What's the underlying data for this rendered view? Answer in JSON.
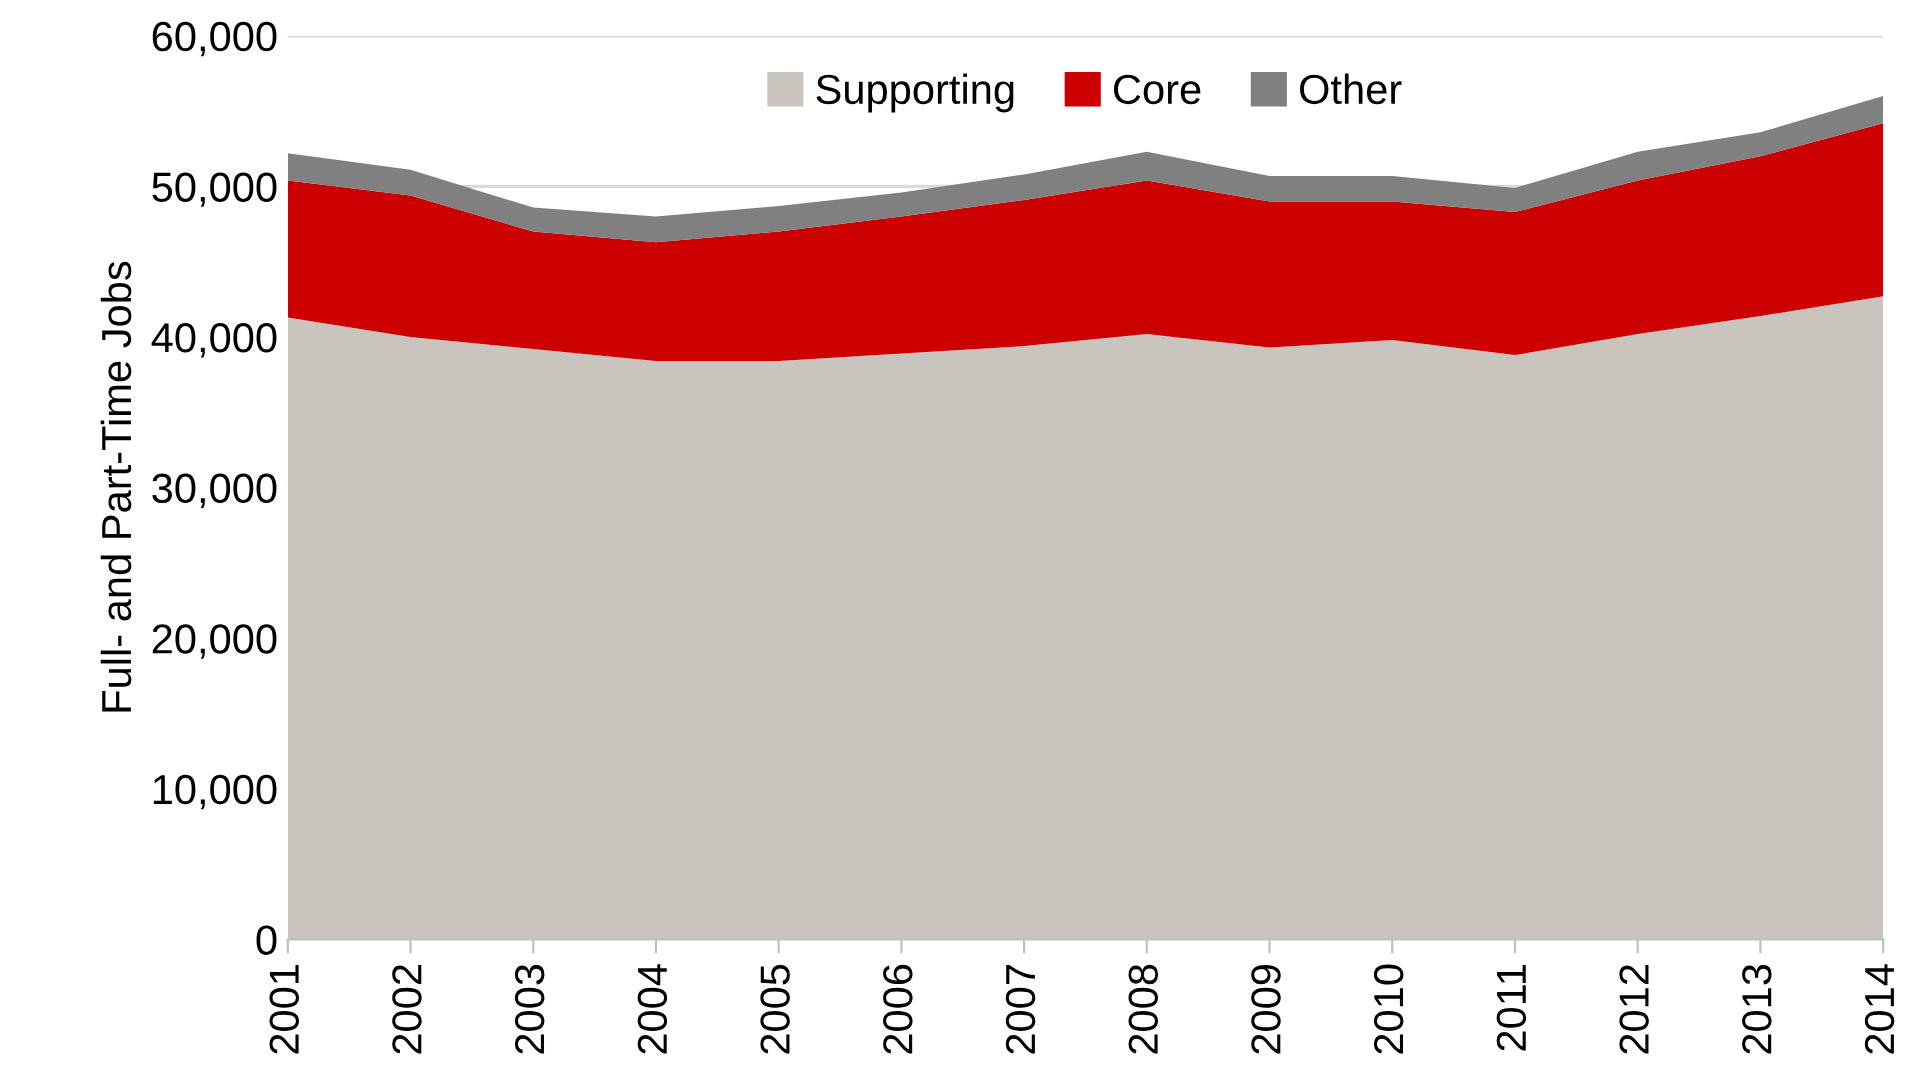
{
  "chart_data": {
    "type": "area",
    "stacked": true,
    "ylabel": "Full- and Part-Time Jobs",
    "categories": [
      "2001",
      "2002",
      "2003",
      "2004",
      "2005",
      "2006",
      "2007",
      "2008",
      "2009",
      "2010",
      "2011",
      "2012",
      "2013",
      "2014"
    ],
    "series": [
      {
        "name": "Supporting",
        "color": "#c9c5be",
        "values": [
          41300,
          40000,
          39200,
          38400,
          38400,
          38900,
          39400,
          40200,
          39300,
          39800,
          38800,
          40200,
          41400,
          42700
        ]
      },
      {
        "name": "Core",
        "color": "#cc0000",
        "values": [
          9100,
          9400,
          7800,
          7900,
          8600,
          9100,
          9700,
          10200,
          9700,
          9200,
          9500,
          10200,
          10600,
          11500
        ]
      },
      {
        "name": "Other",
        "color": "#808080",
        "values": [
          1800,
          1700,
          1600,
          1700,
          1700,
          1600,
          1700,
          1900,
          1700,
          1700,
          1600,
          1900,
          1600,
          1800
        ]
      }
    ],
    "ylim": [
      0,
      60000
    ],
    "yticks": [
      {
        "value": 0,
        "label": "0"
      },
      {
        "value": 10000,
        "label": "10,000"
      },
      {
        "value": 20000,
        "label": "20,000"
      },
      {
        "value": 30000,
        "label": "30,000"
      },
      {
        "value": 40000,
        "label": "40,000"
      },
      {
        "value": 50000,
        "label": "50,000"
      },
      {
        "value": 60000,
        "label": "60,000"
      }
    ],
    "grid": "y",
    "legend": "top"
  }
}
